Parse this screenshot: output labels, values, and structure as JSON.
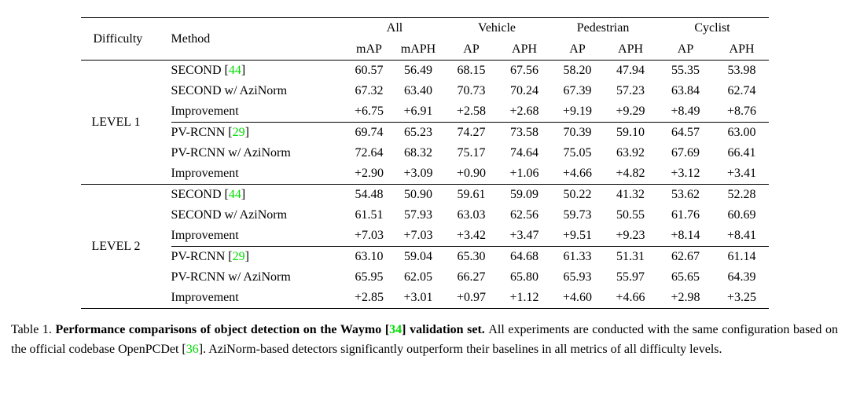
{
  "colors": {
    "citation_green": "#00DC00",
    "text": "#000000",
    "background": "#ffffff"
  },
  "table": {
    "header": {
      "difficulty": "Difficulty",
      "method": "Method",
      "groups": [
        {
          "label": "All",
          "sub": [
            "mAP",
            "mAPH"
          ]
        },
        {
          "label": "Vehicle",
          "sub": [
            "AP",
            "APH"
          ]
        },
        {
          "label": "Pedestrian",
          "sub": [
            "AP",
            "APH"
          ]
        },
        {
          "label": "Cyclist",
          "sub": [
            "AP",
            "APH"
          ]
        }
      ]
    },
    "sections": [
      {
        "difficulty": "LEVEL 1",
        "blocks": [
          {
            "rows": [
              {
                "method": "SECOND",
                "cite": "44",
                "values": [
                  "60.57",
                  "56.49",
                  "68.15",
                  "67.56",
                  "58.20",
                  "47.94",
                  "55.35",
                  "53.98"
                ]
              },
              {
                "method": "SECOND w/ AziNorm",
                "cite": null,
                "values": [
                  "67.32",
                  "63.40",
                  "70.73",
                  "70.24",
                  "67.39",
                  "57.23",
                  "63.84",
                  "62.74"
                ]
              },
              {
                "method": "Improvement",
                "cite": null,
                "values": [
                  "+6.75",
                  "+6.91",
                  "+2.58",
                  "+2.68",
                  "+9.19",
                  "+9.29",
                  "+8.49",
                  "+8.76"
                ]
              }
            ]
          },
          {
            "rows": [
              {
                "method": "PV-RCNN",
                "cite": "29",
                "values": [
                  "69.74",
                  "65.23",
                  "74.27",
                  "73.58",
                  "70.39",
                  "59.10",
                  "64.57",
                  "63.00"
                ]
              },
              {
                "method": "PV-RCNN w/ AziNorm",
                "cite": null,
                "values": [
                  "72.64",
                  "68.32",
                  "75.17",
                  "74.64",
                  "75.05",
                  "63.92",
                  "67.69",
                  "66.41"
                ]
              },
              {
                "method": "Improvement",
                "cite": null,
                "values": [
                  "+2.90",
                  "+3.09",
                  "+0.90",
                  "+1.06",
                  "+4.66",
                  "+4.82",
                  "+3.12",
                  "+3.41"
                ]
              }
            ]
          }
        ]
      },
      {
        "difficulty": "LEVEL 2",
        "blocks": [
          {
            "rows": [
              {
                "method": "SECOND",
                "cite": "44",
                "values": [
                  "54.48",
                  "50.90",
                  "59.61",
                  "59.09",
                  "50.22",
                  "41.32",
                  "53.62",
                  "52.28"
                ]
              },
              {
                "method": "SECOND w/ AziNorm",
                "cite": null,
                "values": [
                  "61.51",
                  "57.93",
                  "63.03",
                  "62.56",
                  "59.73",
                  "50.55",
                  "61.76",
                  "60.69"
                ]
              },
              {
                "method": "Improvement",
                "cite": null,
                "values": [
                  "+7.03",
                  "+7.03",
                  "+3.42",
                  "+3.47",
                  "+9.51",
                  "+9.23",
                  "+8.14",
                  "+8.41"
                ]
              }
            ]
          },
          {
            "rows": [
              {
                "method": "PV-RCNN",
                "cite": "29",
                "values": [
                  "63.10",
                  "59.04",
                  "65.30",
                  "64.68",
                  "61.33",
                  "51.31",
                  "62.67",
                  "61.14"
                ]
              },
              {
                "method": "PV-RCNN w/ AziNorm",
                "cite": null,
                "values": [
                  "65.95",
                  "62.05",
                  "66.27",
                  "65.80",
                  "65.93",
                  "55.97",
                  "65.65",
                  "64.39"
                ]
              },
              {
                "method": "Improvement",
                "cite": null,
                "values": [
                  "+2.85",
                  "+3.01",
                  "+0.97",
                  "+1.12",
                  "+4.60",
                  "+4.66",
                  "+2.98",
                  "+3.25"
                ]
              }
            ]
          }
        ]
      }
    ]
  },
  "caption": {
    "segments": [
      {
        "text": "Table 1.  ",
        "bold": false,
        "green": false
      },
      {
        "text": "Performance comparisons of object detection on the Waymo [",
        "bold": true,
        "green": false
      },
      {
        "text": "34",
        "bold": true,
        "green": true
      },
      {
        "text": "] validation set.  ",
        "bold": true,
        "green": false
      },
      {
        "text": "All experiments are conducted with the same configuration based on the official codebase OpenPCDet [",
        "bold": false,
        "green": false
      },
      {
        "text": "36",
        "bold": false,
        "green": true
      },
      {
        "text": "]. AziNorm-based detectors significantly outperform their baselines in all metrics of all difficulty levels.",
        "bold": false,
        "green": false
      }
    ]
  }
}
